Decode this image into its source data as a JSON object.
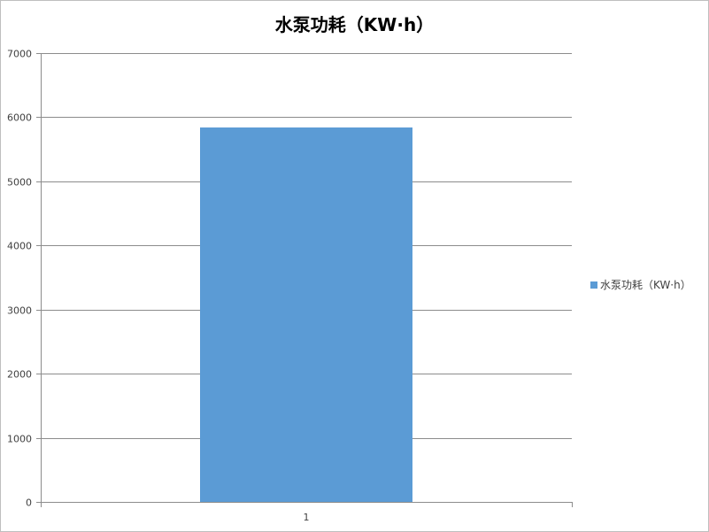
{
  "chart_data": {
    "type": "bar",
    "title": "水泵功耗（KW·h）",
    "categories": [
      "1"
    ],
    "series": [
      {
        "name": "水泵功耗（KW·h）",
        "values": [
          5840
        ],
        "color": "#5b9bd5"
      }
    ],
    "ylim": [
      0,
      7000
    ],
    "yticks": [
      0,
      1000,
      2000,
      3000,
      4000,
      5000,
      6000,
      7000
    ],
    "grid": true,
    "legend_position": "right",
    "xlabel": "",
    "ylabel": ""
  },
  "colors": {
    "gridline": "#8c8c8c",
    "axis": "#8c8c8c",
    "border": "#bfbfbf"
  }
}
